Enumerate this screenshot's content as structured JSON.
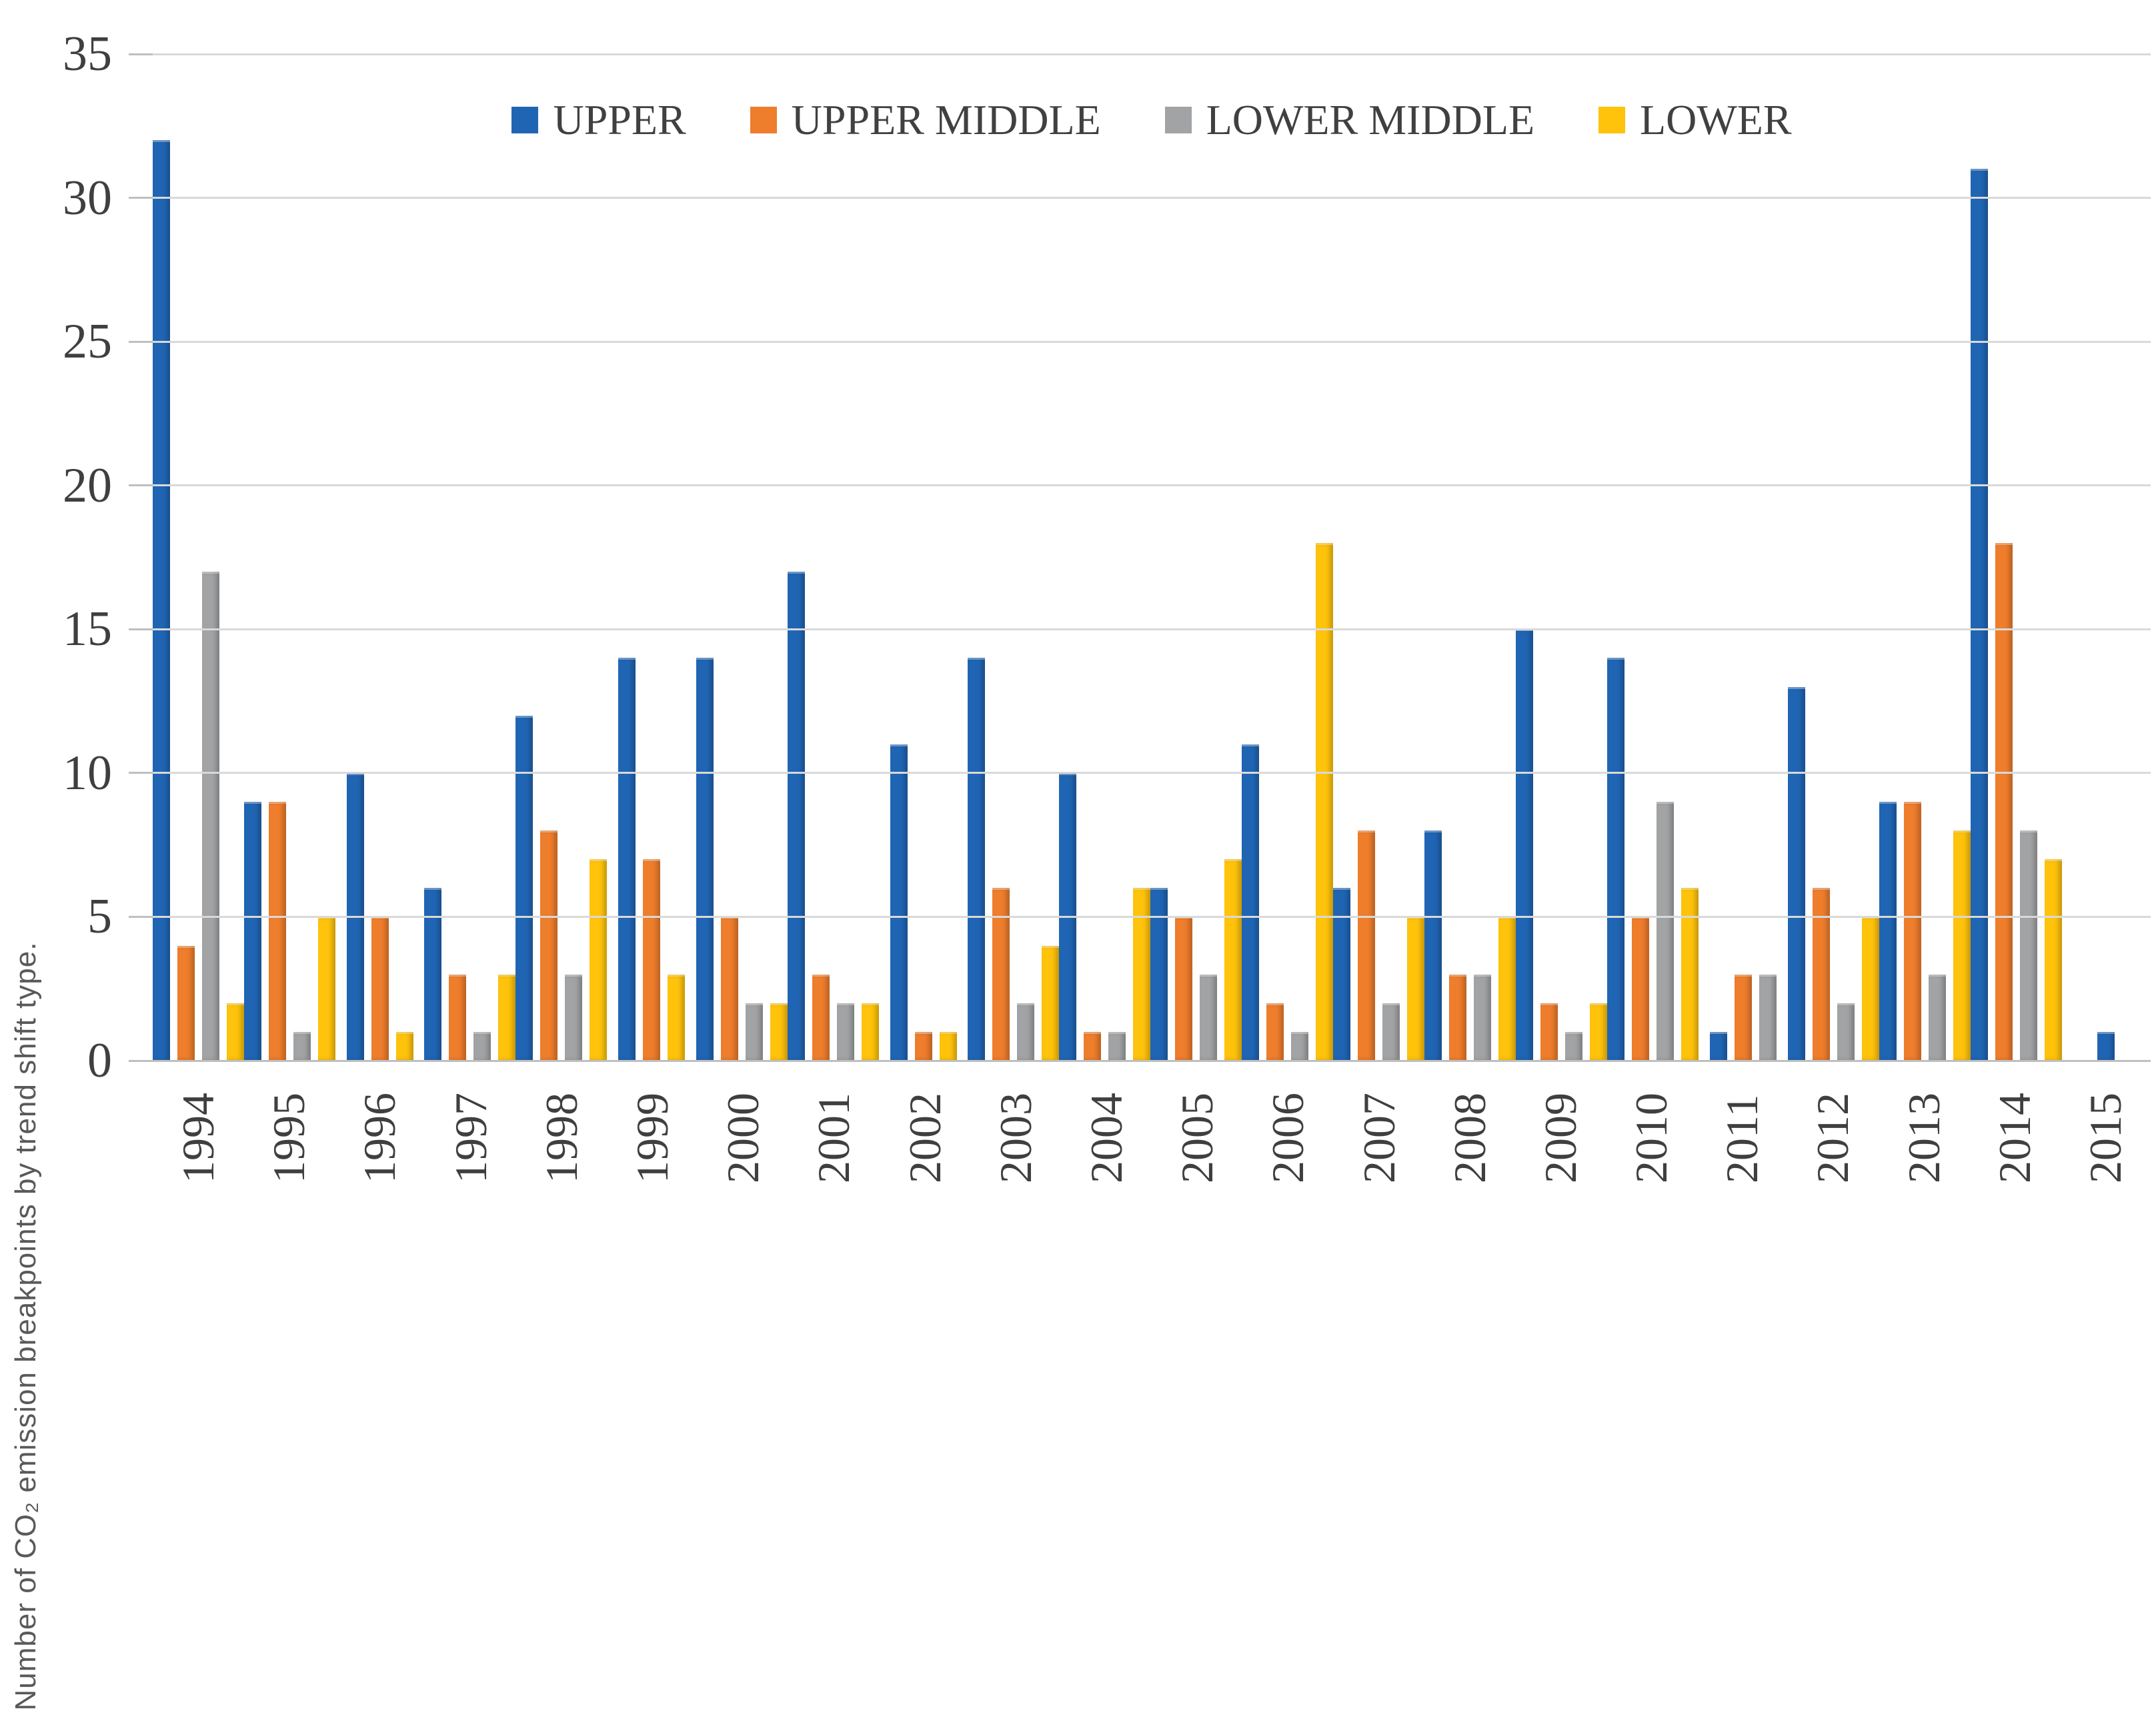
{
  "chart_data": {
    "type": "bar",
    "title": "",
    "xlabel": "",
    "ylabel": "Number of CO₂ emission breakpoints by trend shift type.",
    "ylim": [
      0,
      35
    ],
    "ytick_step": 5,
    "grid": true,
    "legend_position": "top-center",
    "categories": [
      "1994",
      "1995",
      "1996",
      "1997",
      "1998",
      "1999",
      "2000",
      "2001",
      "2002",
      "2003",
      "2004",
      "2005",
      "2006",
      "2007",
      "2008",
      "2009",
      "2010",
      "2011",
      "2012",
      "2013",
      "2014",
      "2015"
    ],
    "series": [
      {
        "name": "UPPER",
        "color": "#2065b4",
        "values": [
          32,
          9,
          10,
          6,
          12,
          14,
          14,
          17,
          11,
          14,
          10,
          6,
          11,
          6,
          8,
          15,
          14,
          1,
          13,
          9,
          31,
          1
        ]
      },
      {
        "name": "UPPER MIDDLE",
        "color": "#ee7d2c",
        "values": [
          4,
          9,
          5,
          3,
          8,
          7,
          5,
          3,
          1,
          6,
          1,
          5,
          2,
          8,
          3,
          2,
          5,
          3,
          6,
          9,
          18,
          0
        ]
      },
      {
        "name": "LOWER MIDDLE",
        "color": "#a2a3a5",
        "values": [
          17,
          1,
          0,
          1,
          3,
          0,
          2,
          2,
          0,
          2,
          1,
          3,
          1,
          2,
          3,
          1,
          9,
          3,
          2,
          3,
          8,
          0
        ]
      },
      {
        "name": "LOWER",
        "color": "#ffc30b",
        "values": [
          2,
          5,
          1,
          3,
          7,
          3,
          2,
          2,
          1,
          4,
          6,
          7,
          18,
          5,
          5,
          2,
          6,
          0,
          5,
          8,
          7,
          0
        ]
      }
    ]
  }
}
